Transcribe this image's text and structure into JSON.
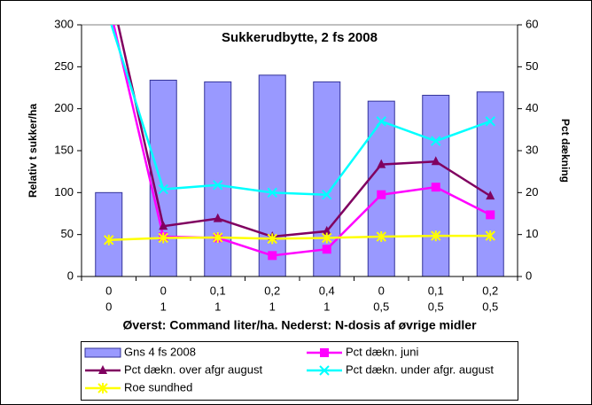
{
  "chart_data": {
    "type": "combo",
    "title": "Sukkerudbytte, 2 fs 2008",
    "ylabel": "Relativ t sukker/ha",
    "y2label": "Pct dækning",
    "xlabel": "Øverst: Command liter/ha. Nederst: N-dosis af øvrige midler",
    "categories": [
      "0",
      "0",
      "0,1",
      "0,2",
      "0,4",
      "0",
      "0,1",
      "0,2"
    ],
    "categories2": [
      "0",
      "1",
      "1",
      "1",
      "1",
      "0,5",
      "0,5",
      "0,5"
    ],
    "ylim": [
      0,
      300
    ],
    "yticks": [
      0,
      50,
      100,
      150,
      200,
      250,
      300
    ],
    "y2lim": [
      0,
      60
    ],
    "y2ticks": [
      0,
      10,
      20,
      30,
      40,
      50,
      60
    ],
    "grid": false,
    "legend": "bottom",
    "series": [
      {
        "name": "Gns 4 fs 2008",
        "type": "bar",
        "color": "#9999ff",
        "values": [
          100,
          234,
          232,
          240,
          232,
          209,
          216,
          220
        ]
      },
      {
        "name": "Pct dækn. juni",
        "type": "line",
        "marker": "square",
        "axis": "y2",
        "color": "#ff00ff",
        "values": [
          65,
          9.5,
          9.2,
          5,
          6.5,
          19.5,
          21.3,
          14.7
        ]
      },
      {
        "name": "Pct dækn. over afgr august",
        "type": "line",
        "marker": "triangle",
        "axis": "y2",
        "color": "#800060",
        "values": [
          70,
          12,
          13.8,
          9.5,
          10.8,
          26.7,
          27.4,
          19.2
        ]
      },
      {
        "name": "Pct dækn. under afgr. august",
        "type": "line",
        "marker": "x",
        "axis": "y2",
        "color": "#00ffff",
        "values": [
          62,
          20.8,
          21.8,
          20,
          19.5,
          37,
          32.3,
          37
        ]
      },
      {
        "name": "Roe sundhed",
        "type": "line",
        "marker": "star",
        "axis": "y2",
        "color": "#ffff00",
        "values": [
          8.7,
          9.2,
          9.3,
          9,
          9.2,
          9.5,
          9.7,
          9.7
        ]
      }
    ]
  }
}
